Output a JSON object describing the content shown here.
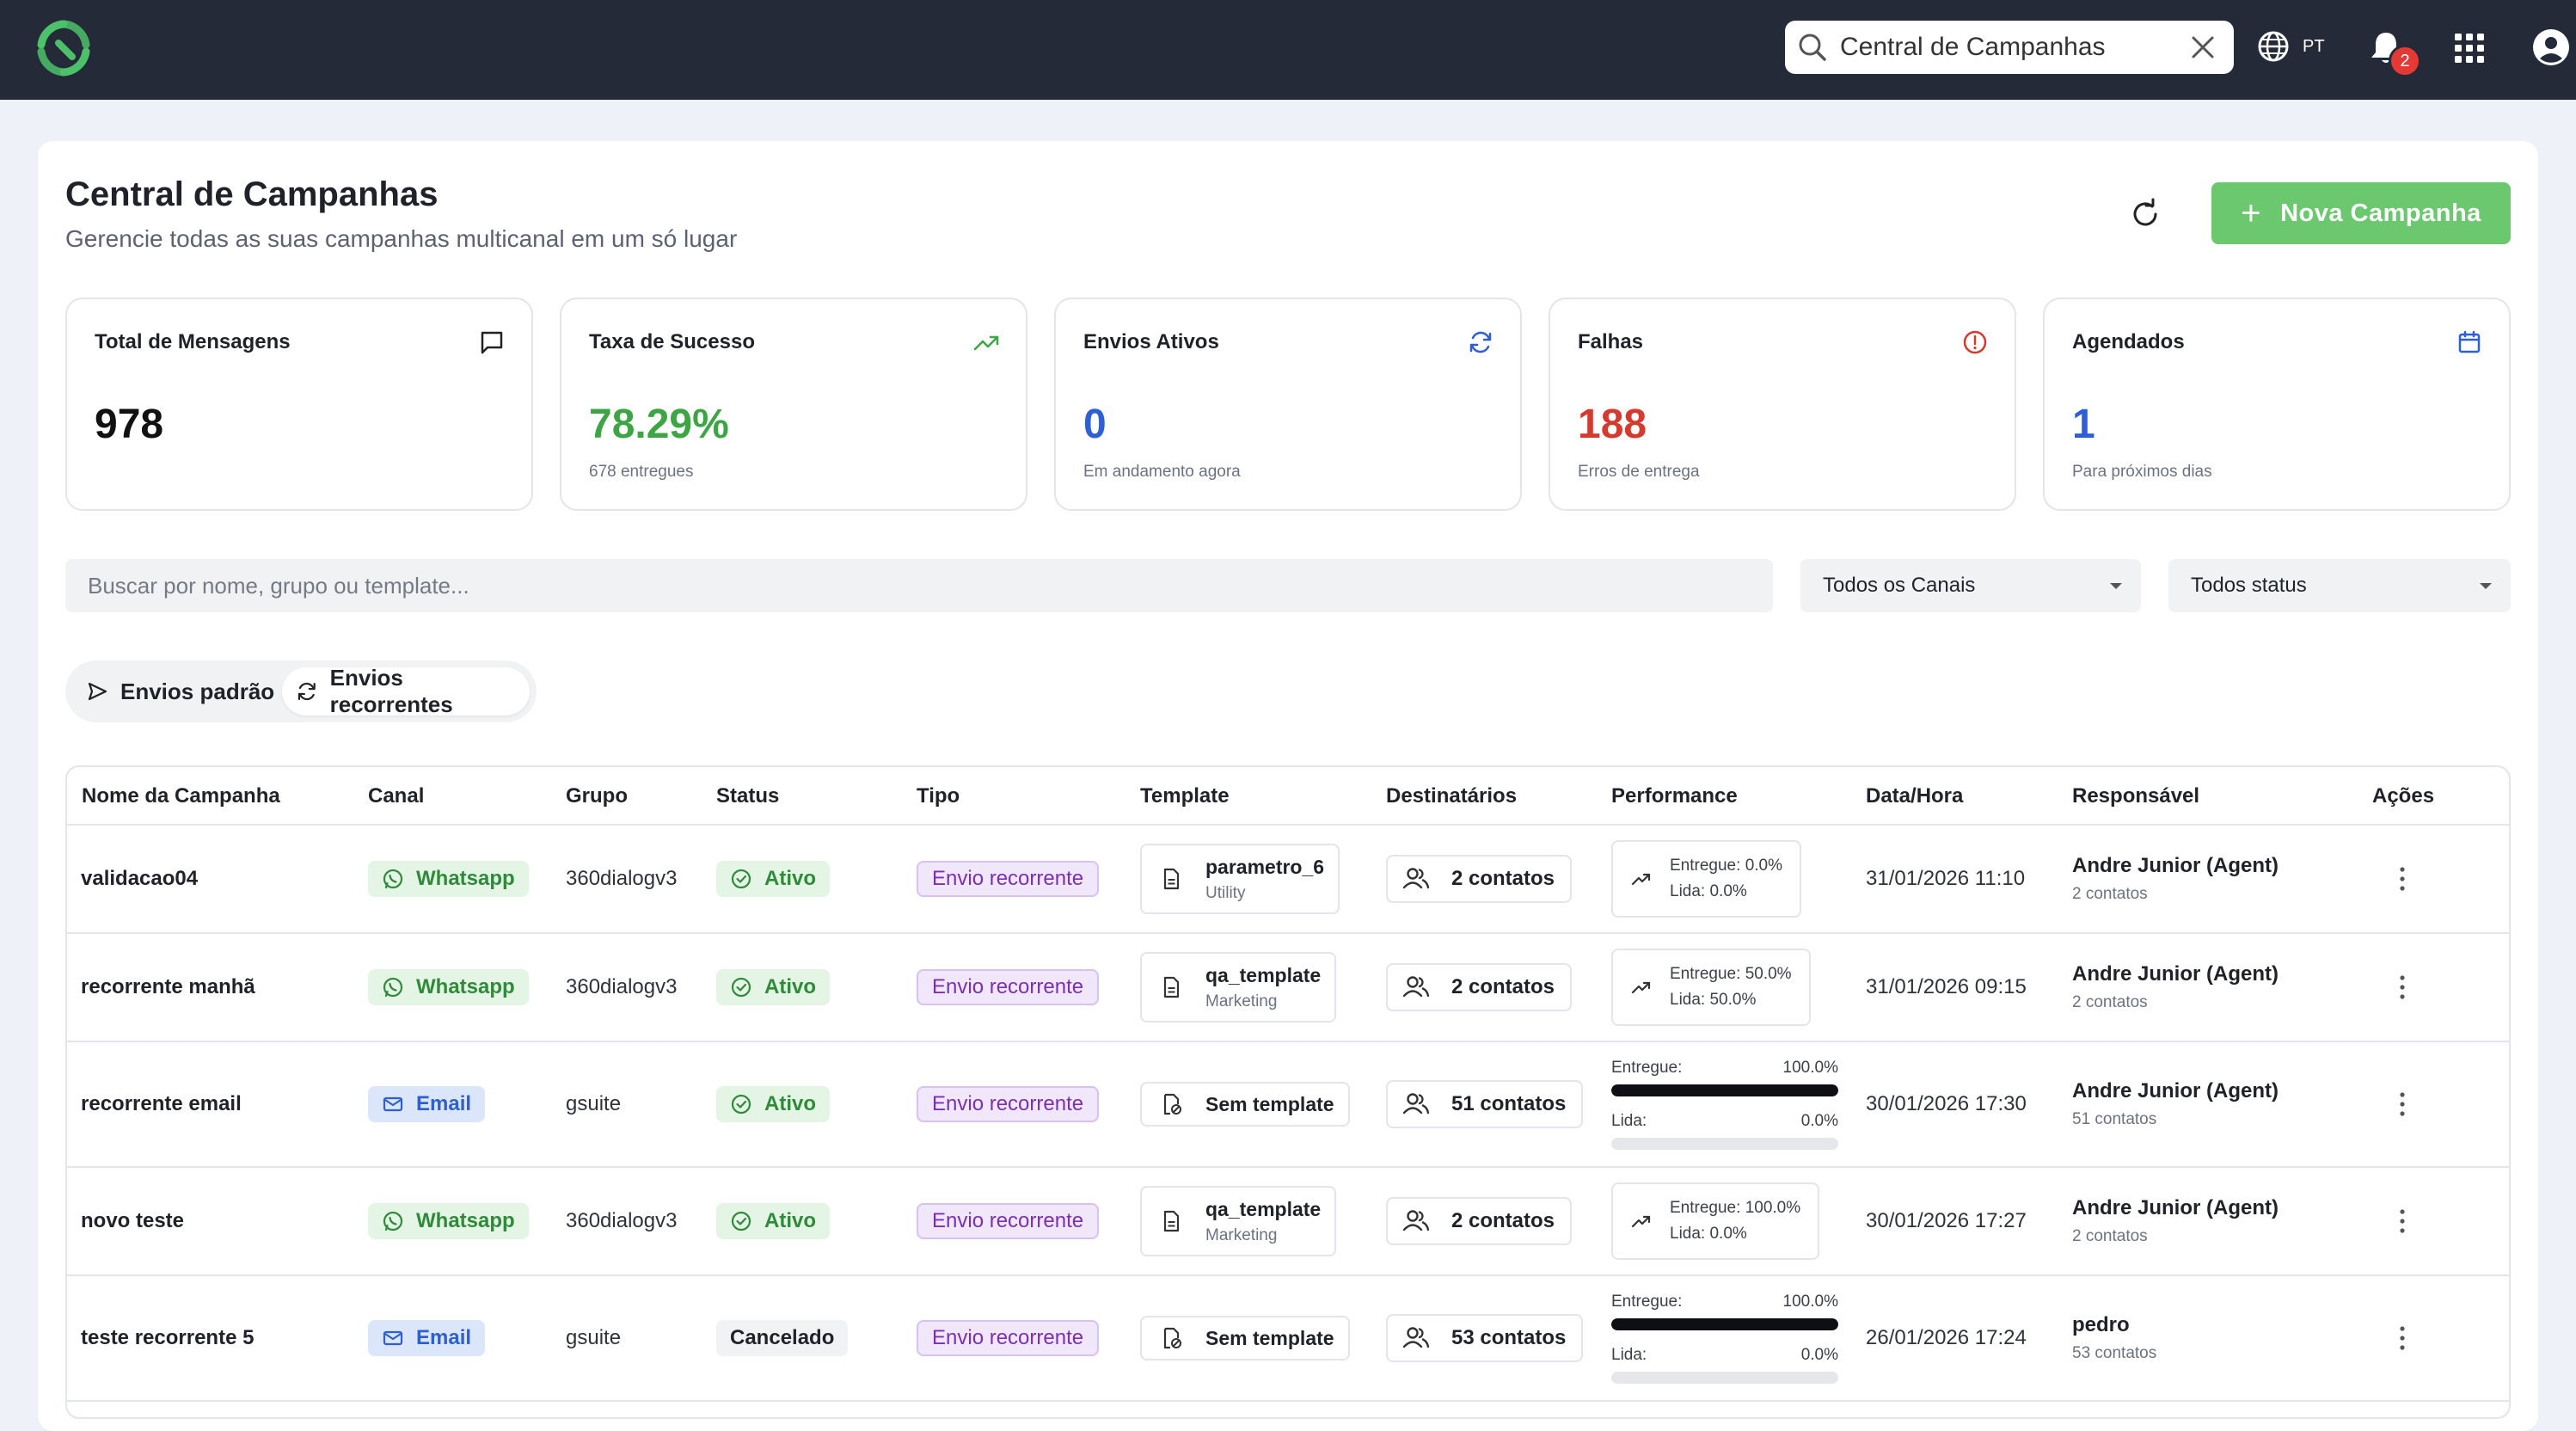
{
  "topbar": {
    "search_value": "Central de Campanhas",
    "lang": "PT",
    "notifications_count": "2"
  },
  "header": {
    "title": "Central de Campanhas",
    "subtitle": "Gerencie todas as suas campanhas multicanal em um só lugar",
    "new_button": "Nova Campanha"
  },
  "stats": [
    {
      "title": "Total de Mensagens",
      "value": "978",
      "sub": "",
      "color": "#111111",
      "icon": "message-icon"
    },
    {
      "title": "Taxa de Sucesso",
      "value": "78.29%",
      "sub": "678 entregues",
      "color": "#3ea545",
      "icon": "trending-up-icon"
    },
    {
      "title": "Envios Ativos",
      "value": "0",
      "sub": "Em andamento agora",
      "color": "#2f5fd6",
      "icon": "sync-icon"
    },
    {
      "title": "Falhas",
      "value": "188",
      "sub": "Erros de entrega",
      "color": "#d63a2f",
      "icon": "alert-icon"
    },
    {
      "title": "Agendados",
      "value": "1",
      "sub": "Para próximos dias",
      "color": "#2f5fd6",
      "icon": "calendar-icon"
    }
  ],
  "filters": {
    "search_placeholder": "Buscar por nome, grupo ou template...",
    "channel": "Todos os Canais",
    "status": "Todos status"
  },
  "tabs": {
    "standard": "Envios padrão",
    "recurring": "Envios recorrentes"
  },
  "table": {
    "columns": [
      "Nome da Campanha",
      "Canal",
      "Grupo",
      "Status",
      "Tipo",
      "Template",
      "Destinatários",
      "Performance",
      "Data/Hora",
      "Responsável",
      "Ações"
    ],
    "rows": [
      {
        "name": "validacao04",
        "channel": "Whatsapp",
        "group": "360dialogv3",
        "status": "Ativo",
        "type": "Envio recorrente",
        "template": "parametro_6",
        "template_cat": "Utility",
        "recipients": "2 contatos",
        "perf_delivered_label": "Entregue:",
        "perf_delivered": "0.0%",
        "perf_read_label": "Lida:",
        "perf_read": "0.0%",
        "date": "31/01/2026 11:10",
        "owner": "Andre Junior (Agent)",
        "owner_sub": "2 contatos"
      },
      {
        "name": "recorrente manhã",
        "channel": "Whatsapp",
        "group": "360dialogv3",
        "status": "Ativo",
        "type": "Envio recorrente",
        "template": "qa_template",
        "template_cat": "Marketing",
        "recipients": "2 contatos",
        "perf_delivered_label": "Entregue:",
        "perf_delivered": "50.0%",
        "perf_read_label": "Lida:",
        "perf_read": "50.0%",
        "date": "31/01/2026 09:15",
        "owner": "Andre Junior (Agent)",
        "owner_sub": "2 contatos"
      },
      {
        "name": "recorrente email",
        "channel": "Email",
        "group": "gsuite",
        "status": "Ativo",
        "type": "Envio recorrente",
        "template": "Sem template",
        "template_cat": "",
        "recipients": "51 contatos",
        "perf_delivered_label": "Entregue:",
        "perf_delivered": "100.0%",
        "perf_delivered_fraction": 1.0,
        "perf_read_label": "Lida:",
        "perf_read": "0.0%",
        "perf_read_fraction": 0.0,
        "date": "30/01/2026 17:30",
        "owner": "Andre Junior (Agent)",
        "owner_sub": "51 contatos"
      },
      {
        "name": "novo teste",
        "channel": "Whatsapp",
        "group": "360dialogv3",
        "status": "Ativo",
        "type": "Envio recorrente",
        "template": "qa_template",
        "template_cat": "Marketing",
        "recipients": "2 contatos",
        "perf_delivered_label": "Entregue:",
        "perf_delivered": "100.0%",
        "perf_read_label": "Lida:",
        "perf_read": "0.0%",
        "date": "30/01/2026 17:27",
        "owner": "Andre Junior (Agent)",
        "owner_sub": "2 contatos"
      },
      {
        "name": "teste recorrente 5",
        "channel": "Email",
        "group": "gsuite",
        "status": "Cancelado",
        "type": "Envio recorrente",
        "template": "Sem template",
        "template_cat": "",
        "recipients": "53 contatos",
        "perf_delivered_label": "Entregue:",
        "perf_delivered": "100.0%",
        "perf_delivered_fraction": 1.0,
        "perf_read_label": "Lida:",
        "perf_read": "0.0%",
        "perf_read_fraction": 0.0,
        "date": "26/01/2026 17:24",
        "owner": "pedro",
        "owner_sub": "53 contatos"
      }
    ]
  }
}
